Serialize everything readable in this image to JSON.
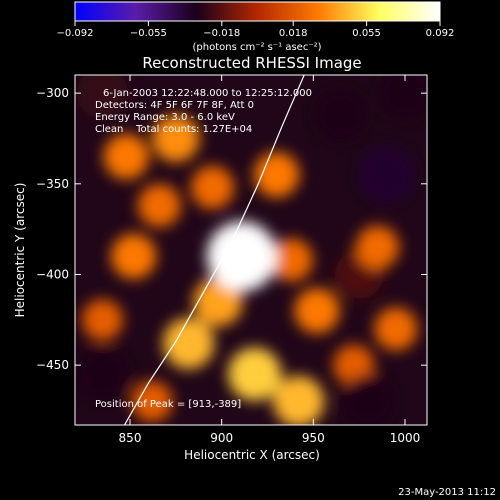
{
  "chart_data": {
    "type": "heatmap",
    "title": "Reconstructed RHESSI Image",
    "xlabel": "Heliocentric X (arcsec)",
    "ylabel": "Heliocentric Y (arcsec)",
    "xlim": [
      820,
      1012
    ],
    "ylim": [
      -483,
      -290
    ],
    "x_ticks": [
      850,
      900,
      950,
      1000
    ],
    "y_ticks": [
      -300,
      -350,
      -400,
      -450
    ],
    "x_tick_labels": [
      "850",
      "900",
      "950",
      "1000"
    ],
    "y_tick_labels": [
      "−300",
      "−350",
      "−400",
      "−450"
    ],
    "colorbar": {
      "ticks": [
        -0.092,
        -0.055,
        -0.018,
        0.018,
        0.055,
        0.092
      ],
      "tick_labels": [
        "−0.092",
        "−0.055",
        "−0.018",
        "0.018",
        "0.055",
        "0.092"
      ],
      "range": [
        -0.092,
        0.092
      ],
      "unit_label": "(photons cm⁻² s⁻¹ asec⁻²)",
      "colors": [
        "#0000ff",
        "#5a1ca8",
        "#1a001a",
        "#b42800",
        "#ff7a00",
        "#ffff60",
        "#ffffff"
      ]
    },
    "annotations": [
      "6-Jan-2003 12:22:48.000 to 12:25:12.000",
      "Detectors: 4F 5F 6F 7F 8F, Att 0",
      "Energy Range: 3.0 - 6.0 keV",
      "Clean    Total counts: 1.27E+04",
      "Position of Peak = [913,-389]"
    ],
    "peak": {
      "x": 913,
      "y": -389
    },
    "limb_curve": {
      "x": [
        847,
        860,
        875,
        890,
        905,
        920,
        933,
        945
      ],
      "y": [
        -483,
        -460,
        -437,
        -410,
        -383,
        -350,
        -318,
        -290
      ]
    },
    "sources": [
      {
        "x": 911,
        "y": -390,
        "value": 0.092
      },
      {
        "x": 898,
        "y": -415,
        "value": 0.04
      },
      {
        "x": 882,
        "y": -438,
        "value": 0.045
      },
      {
        "x": 918,
        "y": -455,
        "value": 0.05
      },
      {
        "x": 942,
        "y": -470,
        "value": 0.045
      },
      {
        "x": 952,
        "y": -420,
        "value": 0.03
      },
      {
        "x": 930,
        "y": -345,
        "value": 0.03
      },
      {
        "x": 875,
        "y": -325,
        "value": 0.035
      },
      {
        "x": 848,
        "y": -335,
        "value": 0.03
      },
      {
        "x": 852,
        "y": -390,
        "value": 0.03
      },
      {
        "x": 866,
        "y": -362,
        "value": 0.025
      },
      {
        "x": 895,
        "y": -352,
        "value": 0.025
      },
      {
        "x": 938,
        "y": -392,
        "value": 0.025
      },
      {
        "x": 985,
        "y": -385,
        "value": 0.025
      },
      {
        "x": 995,
        "y": -430,
        "value": 0.025
      },
      {
        "x": 972,
        "y": -450,
        "value": 0.02
      },
      {
        "x": 862,
        "y": -470,
        "value": 0.02
      },
      {
        "x": 835,
        "y": -425,
        "value": 0.02
      },
      {
        "x": 965,
        "y": -312,
        "value": -0.03
      },
      {
        "x": 990,
        "y": -345,
        "value": -0.035
      },
      {
        "x": 1000,
        "y": -300,
        "value": -0.03
      },
      {
        "x": 835,
        "y": -455,
        "value": -0.03
      },
      {
        "x": 835,
        "y": -300,
        "value": -0.025
      },
      {
        "x": 980,
        "y": -470,
        "value": -0.03
      },
      {
        "x": 975,
        "y": -400,
        "value": -0.02
      }
    ]
  },
  "footer": {
    "timestamp": "23-May-2013 11:12"
  }
}
